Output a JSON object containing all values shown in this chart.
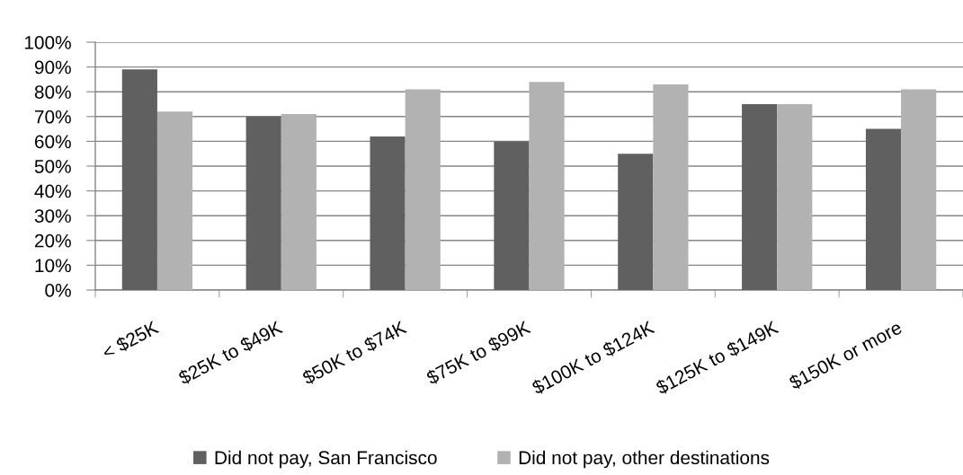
{
  "chart_data": {
    "type": "bar",
    "categories": [
      "< $25K",
      "$25K to $49K",
      "$50K to $74K",
      "$75K to $99K",
      "$100K to $124K",
      "$125K to $149K",
      "$150K or more"
    ],
    "series": [
      {
        "name": "Did not pay, San Francisco",
        "color": "#606060",
        "values": [
          89,
          70,
          62,
          60,
          55,
          75,
          65
        ]
      },
      {
        "name": "Did not pay, other destinations",
        "color": "#b2b2b2",
        "values": [
          72,
          71,
          81,
          84,
          83,
          75,
          81
        ]
      }
    ],
    "ylim": [
      0,
      100
    ],
    "yticks": [
      {
        "value": 0,
        "label": "0%"
      },
      {
        "value": 10,
        "label": "10%"
      },
      {
        "value": 20,
        "label": "20%"
      },
      {
        "value": 30,
        "label": "30%"
      },
      {
        "value": 40,
        "label": "40%"
      },
      {
        "value": 50,
        "label": "50%"
      },
      {
        "value": 60,
        "label": "60%"
      },
      {
        "value": 70,
        "label": "70%"
      },
      {
        "value": 80,
        "label": "80%"
      },
      {
        "value": 90,
        "label": "90%"
      },
      {
        "value": 100,
        "label": "100%"
      }
    ],
    "grid": "y",
    "legend": "bottom"
  }
}
